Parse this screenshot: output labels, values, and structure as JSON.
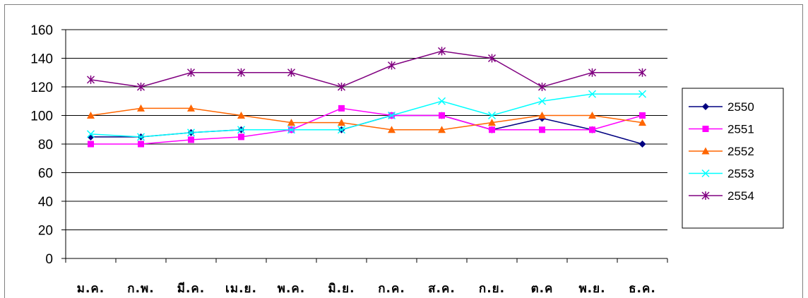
{
  "chart_data": {
    "type": "line",
    "title": "",
    "xlabel": "",
    "ylabel": "",
    "ylim": [
      0,
      160
    ],
    "yticks": [
      0,
      20,
      40,
      60,
      80,
      100,
      120,
      140,
      160
    ],
    "grid": true,
    "legend_position": "right",
    "categories": [
      "ม.ค.",
      "ก.พ.",
      "มี.ค.",
      "เม.ย.",
      "พ.ค.",
      "มิ.ย.",
      "ก.ค.",
      "ส.ค.",
      "ก.ย.",
      "ต.ค",
      "พ.ย.",
      "ธ.ค."
    ],
    "series": [
      {
        "name": "2550",
        "color": "#000080",
        "marker": "diamond",
        "values": [
          85,
          85,
          88,
          90,
          90,
          90,
          100,
          100,
          90,
          98,
          90,
          80
        ]
      },
      {
        "name": "2551",
        "color": "#ff00ff",
        "marker": "square",
        "values": [
          80,
          80,
          83,
          85,
          90,
          105,
          100,
          100,
          90,
          90,
          90,
          100
        ]
      },
      {
        "name": "2552",
        "color": "#ff6600",
        "marker": "triangle",
        "values": [
          100,
          105,
          105,
          100,
          95,
          95,
          90,
          90,
          95,
          100,
          100,
          95
        ]
      },
      {
        "name": "2553",
        "color": "#00ffff",
        "marker": "x",
        "values": [
          87,
          85,
          88,
          90,
          90,
          90,
          100,
          110,
          100,
          110,
          115,
          115
        ]
      },
      {
        "name": "2554",
        "color": "#800080",
        "marker": "star",
        "values": [
          125,
          120,
          130,
          130,
          130,
          120,
          135,
          145,
          140,
          120,
          130,
          130
        ]
      }
    ]
  }
}
